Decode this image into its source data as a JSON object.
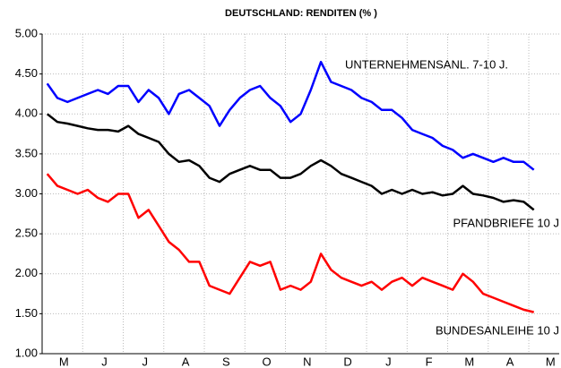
{
  "chart_data": {
    "type": "line",
    "title": "DEUTSCHLAND: RENDITEN (% )",
    "categories": [
      null,
      null,
      "M",
      null,
      null,
      null,
      "J",
      null,
      null,
      null,
      "J",
      null,
      null,
      null,
      "A",
      null,
      null,
      null,
      "S",
      null,
      null,
      null,
      "O",
      null,
      null,
      null,
      "N",
      null,
      null,
      null,
      "D",
      null,
      null,
      null,
      "J",
      null,
      null,
      null,
      "F",
      null,
      null,
      null,
      "M",
      null,
      null,
      null,
      "A",
      null,
      null,
      null,
      "M"
    ],
    "series": [
      {
        "name": "UNTERNEHMENSANL. 7-10 J.",
        "color": "#0000ff",
        "values": [
          4.38,
          4.2,
          4.15,
          4.2,
          4.25,
          4.3,
          4.25,
          4.35,
          4.35,
          4.15,
          4.3,
          4.2,
          4.0,
          4.25,
          4.3,
          4.2,
          4.1,
          3.85,
          4.05,
          4.2,
          4.3,
          4.35,
          4.2,
          4.1,
          3.9,
          4.0,
          4.3,
          4.65,
          4.4,
          4.35,
          4.3,
          4.2,
          4.15,
          4.05,
          4.05,
          3.95,
          3.8,
          3.75,
          3.7,
          3.6,
          3.55,
          3.45,
          3.5,
          3.45,
          3.4,
          3.45,
          3.4,
          3.4,
          3.3,
          null,
          null
        ]
      },
      {
        "name": "PFANDBRIEFE 10 J",
        "color": "#000000",
        "values": [
          4.0,
          3.9,
          3.88,
          3.85,
          3.82,
          3.8,
          3.8,
          3.78,
          3.85,
          3.75,
          3.7,
          3.65,
          3.5,
          3.4,
          3.42,
          3.35,
          3.2,
          3.15,
          3.25,
          3.3,
          3.35,
          3.3,
          3.3,
          3.2,
          3.2,
          3.25,
          3.35,
          3.42,
          3.35,
          3.25,
          3.2,
          3.15,
          3.1,
          3.0,
          3.05,
          3.0,
          3.05,
          3.0,
          3.02,
          2.98,
          3.0,
          3.1,
          3.0,
          2.98,
          2.95,
          2.9,
          2.92,
          2.9,
          2.8,
          null,
          null
        ]
      },
      {
        "name": "BUNDESANLEIHE 10 J",
        "color": "#ff0000",
        "values": [
          3.25,
          3.1,
          3.05,
          3.0,
          3.05,
          2.95,
          2.9,
          3.0,
          3.0,
          2.7,
          2.8,
          2.6,
          2.4,
          2.3,
          2.15,
          2.15,
          1.85,
          1.8,
          1.75,
          1.95,
          2.15,
          2.1,
          2.15,
          1.8,
          1.85,
          1.8,
          1.9,
          2.25,
          2.05,
          1.95,
          1.9,
          1.85,
          1.9,
          1.8,
          1.9,
          1.95,
          1.85,
          1.95,
          1.9,
          1.85,
          1.8,
          2.0,
          1.9,
          1.75,
          1.7,
          1.65,
          1.6,
          1.55,
          1.52,
          null,
          null
        ]
      }
    ],
    "ylim": [
      1,
      5
    ],
    "yticks": [
      {
        "value": 1,
        "label": "1.00"
      },
      {
        "value": 1.5,
        "label": "1.50"
      },
      {
        "value": 2,
        "label": "2.00"
      },
      {
        "value": 2.5,
        "label": "2.50"
      },
      {
        "value": 3,
        "label": "3.00"
      },
      {
        "value": 3.5,
        "label": "3.50"
      },
      {
        "value": 4,
        "label": "4.00"
      },
      {
        "value": 4.5,
        "label": "4.50"
      },
      {
        "value": 5,
        "label": "5.00"
      }
    ],
    "grid": true
  }
}
